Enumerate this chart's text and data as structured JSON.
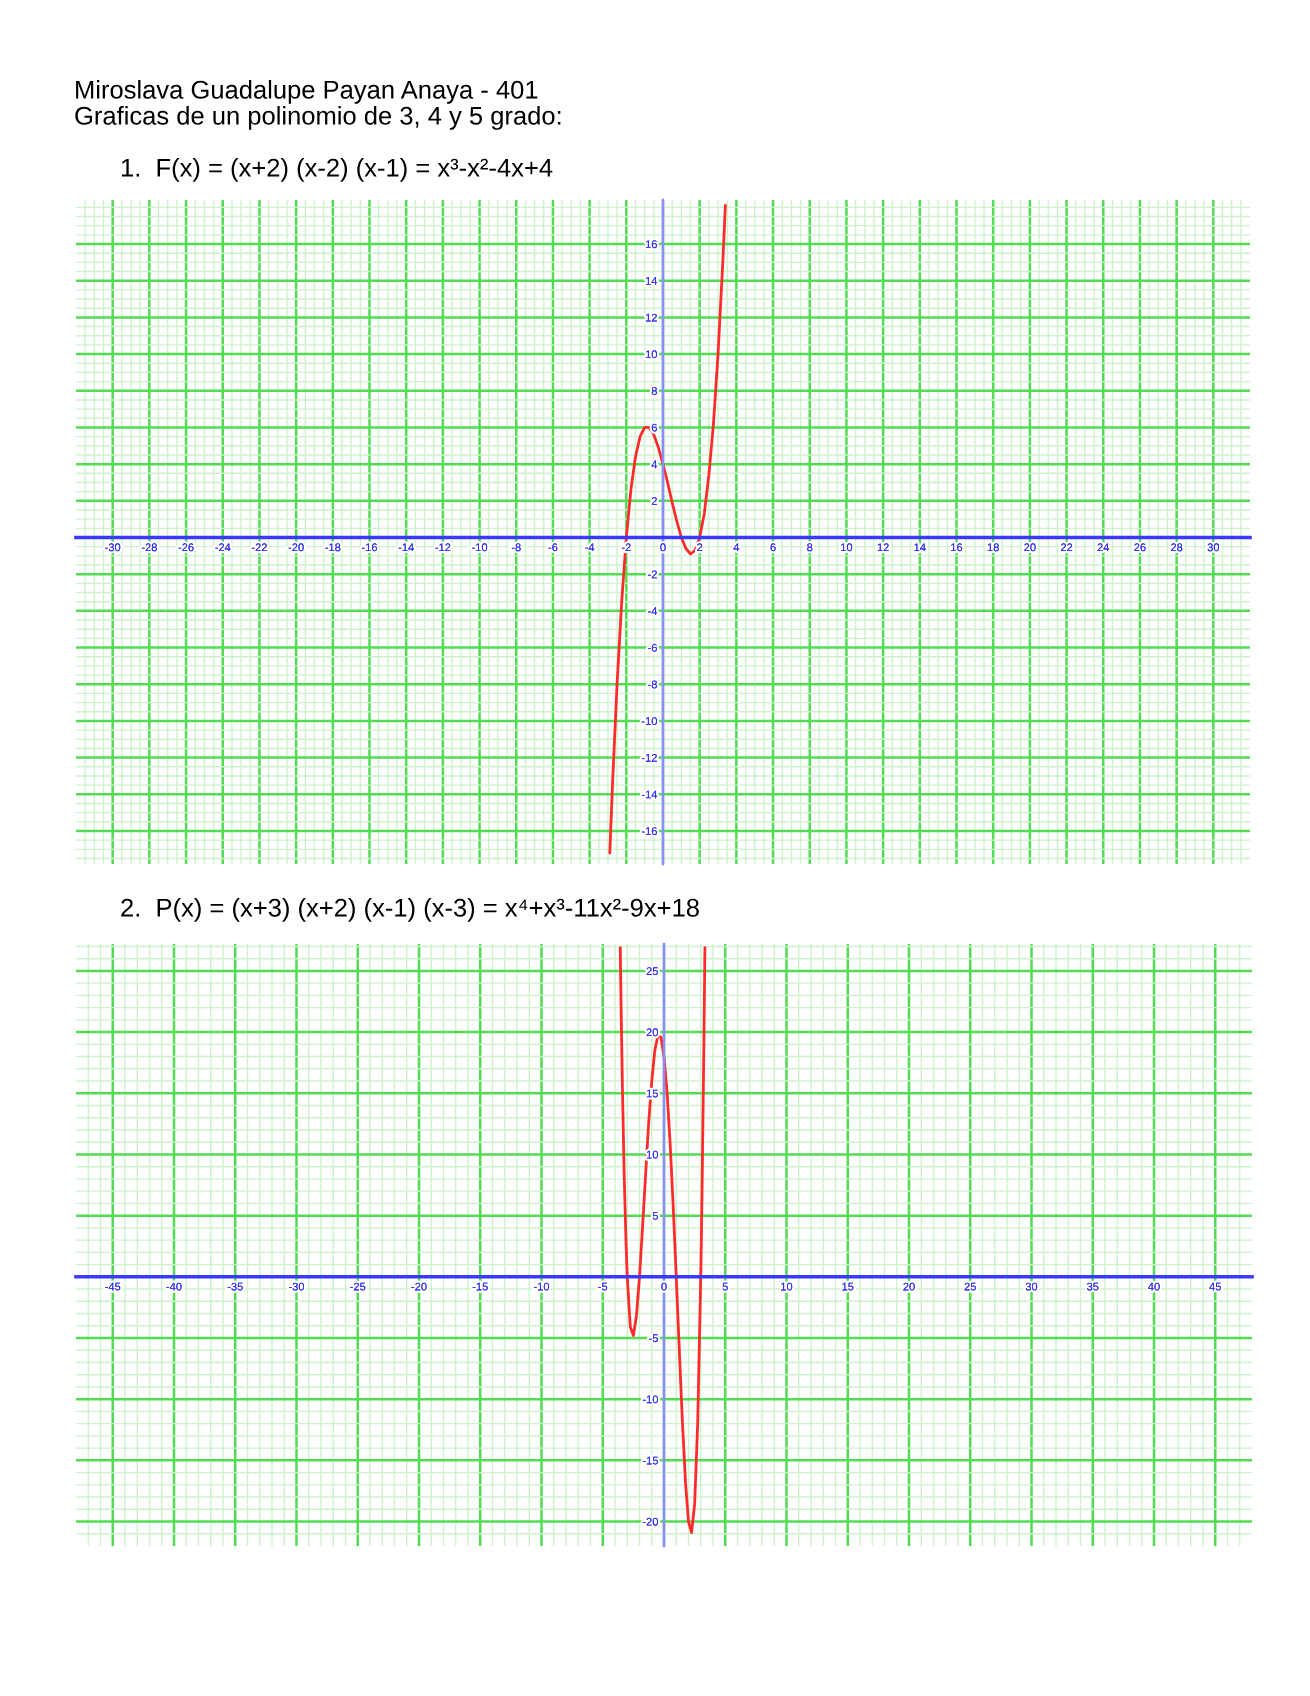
{
  "chart_data": [
    {
      "type": "line",
      "title": "Miroslava Guadalupe Payan Anaya - 401\nGraficas de un polinomio de 3, 4 y 5 grado:",
      "subtitle": "1.  F(x) = (x+2) (x-2) (x-1) = x³-x²-4x+4",
      "x": [
        -2.9,
        -2.75,
        -2.5,
        -2.25,
        -2,
        -1.75,
        -1.5,
        -1.25,
        -1,
        -0.75,
        -0.5,
        -0.25,
        0,
        0.25,
        0.5,
        0.75,
        1,
        1.25,
        1.5,
        1.75,
        2,
        2.25,
        2.5,
        2.75,
        3,
        3.25,
        3.4
      ],
      "series": [
        {
          "color": "#ff2a2a",
          "values": [
            -17.2,
            -13.4,
            -7.9,
            -3.5,
            0,
            2.6,
            4.4,
            5.5,
            6,
            6,
            5.6,
            4.9,
            4,
            3,
            1.9,
            0.9,
            0,
            -0.6,
            -0.9,
            -0.7,
            0,
            1.3,
            3.4,
            6.2,
            10,
            14.8,
            18.1
          ]
        }
      ],
      "xlim": [
        -32,
        32
      ],
      "ylim": [
        -17.8,
        18.4
      ],
      "xticks": [
        {
          "value": -31.5,
          "label": null
        },
        {
          "value": -31,
          "label": null
        },
        {
          "value": -30.5,
          "label": null
        },
        -30,
        {
          "value": -29.5,
          "label": null
        },
        {
          "value": -29,
          "label": null
        },
        {
          "value": -28.5,
          "label": null
        },
        -28,
        {
          "value": -27.5,
          "label": null
        },
        {
          "value": -27,
          "label": null
        },
        {
          "value": -26.5,
          "label": null
        },
        -26,
        {
          "value": -25.5,
          "label": null
        },
        {
          "value": -25,
          "label": null
        },
        {
          "value": -24.5,
          "label": null
        },
        -24,
        {
          "value": -23.5,
          "label": null
        },
        {
          "value": -23,
          "label": null
        },
        {
          "value": -22.5,
          "label": null
        },
        -22,
        {
          "value": -21.5,
          "label": null
        },
        {
          "value": -21,
          "label": null
        },
        {
          "value": -20.5,
          "label": null
        },
        -20,
        {
          "value": -19.5,
          "label": null
        },
        {
          "value": -19,
          "label": null
        },
        {
          "value": -18.5,
          "label": null
        },
        -18,
        {
          "value": -17.5,
          "label": null
        },
        {
          "value": -17,
          "label": null
        },
        {
          "value": -16.5,
          "label": null
        },
        -16,
        {
          "value": -15.5,
          "label": null
        },
        {
          "value": -15,
          "label": null
        },
        {
          "value": -14.5,
          "label": null
        },
        -14,
        {
          "value": -13.5,
          "label": null
        },
        {
          "value": -13,
          "label": null
        },
        {
          "value": -12.5,
          "label": null
        },
        -12,
        {
          "value": -11.5,
          "label": null
        },
        {
          "value": -11,
          "label": null
        },
        {
          "value": -10.5,
          "label": null
        },
        -10,
        {
          "value": -9.5,
          "label": null
        },
        {
          "value": -9,
          "label": null
        },
        {
          "value": -8.5,
          "label": null
        },
        -8,
        {
          "value": -7.5,
          "label": null
        },
        {
          "value": -7,
          "label": null
        },
        {
          "value": -6.5,
          "label": null
        },
        -6,
        {
          "value": -5.5,
          "label": null
        },
        {
          "value": -5,
          "label": null
        },
        {
          "value": -4.5,
          "label": null
        },
        -4,
        {
          "value": -3.5,
          "label": null
        },
        {
          "value": -3,
          "label": null
        },
        {
          "value": -2.5,
          "label": null
        },
        -2,
        {
          "value": -1.5,
          "label": null
        },
        {
          "value": -1,
          "label": null
        },
        {
          "value": -0.5,
          "label": null
        },
        0,
        {
          "value": 0.5,
          "label": null
        },
        {
          "value": 1,
          "label": null
        },
        {
          "value": 1.5,
          "label": null
        },
        2,
        {
          "value": 2.5,
          "label": null
        },
        {
          "value": 3,
          "label": null
        },
        {
          "value": 3.5,
          "label": null
        },
        4,
        {
          "value": 4.5,
          "label": null
        },
        {
          "value": 5,
          "label": null
        },
        {
          "value": 5.5,
          "label": null
        },
        6,
        {
          "value": 6.5,
          "label": null
        },
        {
          "value": 7,
          "label": null
        },
        {
          "value": 7.5,
          "label": null
        },
        8,
        {
          "value": 8.5,
          "label": null
        },
        {
          "value": 9,
          "label": null
        },
        {
          "value": 9.5,
          "label": null
        },
        10,
        {
          "value": 10.5,
          "label": null
        },
        {
          "value": 11,
          "label": null
        },
        {
          "value": 11.5,
          "label": null
        },
        12,
        {
          "value": 12.5,
          "label": null
        },
        {
          "value": 13,
          "label": null
        },
        {
          "value": 13.5,
          "label": null
        },
        14,
        {
          "value": 14.5,
          "label": null
        },
        {
          "value": 15,
          "label": null
        },
        {
          "value": 15.5,
          "label": null
        },
        16,
        {
          "value": 16.5,
          "label": null
        },
        {
          "value": 17,
          "label": null
        },
        {
          "value": 17.5,
          "label": null
        },
        18,
        {
          "value": 18.5,
          "label": null
        },
        {
          "value": 19,
          "label": null
        },
        {
          "value": 19.5,
          "label": null
        },
        20,
        {
          "value": 20.5,
          "label": null
        },
        {
          "value": 21,
          "label": null
        },
        {
          "value": 21.5,
          "label": null
        },
        22,
        {
          "value": 22.5,
          "label": null
        },
        {
          "value": 23,
          "label": null
        },
        {
          "value": 23.5,
          "label": null
        },
        24,
        {
          "value": 24.5,
          "label": null
        },
        {
          "value": 25,
          "label": null
        },
        {
          "value": 25.5,
          "label": null
        },
        26,
        {
          "value": 26.5,
          "label": null
        },
        {
          "value": 27,
          "label": null
        },
        {
          "value": 27.5,
          "label": null
        },
        28,
        {
          "value": 28.5,
          "label": null
        },
        {
          "value": 29,
          "label": null
        },
        {
          "value": 29.5,
          "label": null
        },
        30,
        {
          "value": 30.5,
          "label": null
        },
        {
          "value": 31,
          "label": null
        },
        {
          "value": 31.5,
          "label": null
        }
      ],
      "yticks": [
        {
          "value": -17.5,
          "label": null
        },
        {
          "value": -17,
          "label": null
        },
        {
          "value": -16.5,
          "label": null
        },
        -16,
        {
          "value": -15.5,
          "label": null
        },
        {
          "value": -15,
          "label": null
        },
        {
          "value": -14.5,
          "label": null
        },
        -14,
        {
          "value": -13.5,
          "label": null
        },
        {
          "value": -13,
          "label": null
        },
        {
          "value": -12.5,
          "label": null
        },
        -12,
        {
          "value": -11.5,
          "label": null
        },
        {
          "value": -11,
          "label": null
        },
        {
          "value": -10.5,
          "label": null
        },
        -10,
        {
          "value": -9.5,
          "label": null
        },
        {
          "value": -9,
          "label": null
        },
        {
          "value": -8.5,
          "label": null
        },
        -8,
        {
          "value": -7.5,
          "label": null
        },
        {
          "value": -7,
          "label": null
        },
        {
          "value": -6.5,
          "label": null
        },
        -6,
        {
          "value": -5.5,
          "label": null
        },
        {
          "value": -5,
          "label": null
        },
        {
          "value": -4.5,
          "label": null
        },
        -4,
        {
          "value": -3.5,
          "label": null
        },
        {
          "value": -3,
          "label": null
        },
        {
          "value": -2.5,
          "label": null
        },
        -2,
        {
          "value": -1.5,
          "label": null
        },
        {
          "value": -1,
          "label": null
        },
        {
          "value": -0.5,
          "label": null
        },
        {
          "value": 0.5,
          "label": null
        },
        {
          "value": 1,
          "label": null
        },
        {
          "value": 1.5,
          "label": null
        },
        2,
        {
          "value": 2.5,
          "label": null
        },
        {
          "value": 3,
          "label": null
        },
        {
          "value": 3.5,
          "label": null
        },
        4,
        {
          "value": 4.5,
          "label": null
        },
        {
          "value": 5,
          "label": null
        },
        {
          "value": 5.5,
          "label": null
        },
        6,
        {
          "value": 6.5,
          "label": null
        },
        {
          "value": 7,
          "label": null
        },
        {
          "value": 7.5,
          "label": null
        },
        8,
        {
          "value": 8.5,
          "label": null
        },
        {
          "value": 9,
          "label": null
        },
        {
          "value": 9.5,
          "label": null
        },
        10,
        {
          "value": 10.5,
          "label": null
        },
        {
          "value": 11,
          "label": null
        },
        {
          "value": 11.5,
          "label": null
        },
        12,
        {
          "value": 12.5,
          "label": null
        },
        {
          "value": 13,
          "label": null
        },
        {
          "value": 13.5,
          "label": null
        },
        14,
        {
          "value": 14.5,
          "label": null
        },
        {
          "value": 15,
          "label": null
        },
        {
          "value": 15.5,
          "label": null
        },
        16,
        {
          "value": 16.5,
          "label": null
        },
        {
          "value": 17,
          "label": null
        },
        {
          "value": 17.5,
          "label": null
        },
        {
          "value": 18,
          "label": null
        }
      ],
      "grid": true
    },
    {
      "type": "line",
      "title": "2.  P(x) = (x+3) (x+2) (x-1) (x-3) = x⁴+x³-11x²-9x+18",
      "x": [
        -3.57,
        -3.5,
        -3.4,
        -3.25,
        -3.1,
        -3,
        -2.75,
        -2.5,
        -2.25,
        -2,
        -1.75,
        -1.5,
        -1.25,
        -1,
        -0.75,
        -0.5,
        -0.25,
        0,
        0.25,
        0.5,
        0.75,
        1,
        1.25,
        1.5,
        1.75,
        2,
        2.25,
        2.5,
        2.75,
        3,
        3.1,
        3.25,
        3.34
      ],
      "series": [
        {
          "color": "#ff2a2a",
          "values": [
            26.9,
            21.9,
            15.8,
            8.3,
            2.8,
            0,
            -4.1,
            -4.8,
            -3.2,
            0,
            4.1,
            8.4,
            12.6,
            16,
            18.5,
            19.7,
            19.6,
            18,
            15.1,
            10.9,
            5.8,
            0,
            -6,
            -11.8,
            -16.7,
            -20,
            -20.9,
            -18.6,
            -12,
            0,
            6.5,
            18.5,
            26.9
          ]
        }
      ],
      "xlim": [
        -48,
        48
      ],
      "ylim": [
        -22,
        27.2
      ],
      "xticks": [
        {
          "value": -47,
          "label": null
        },
        {
          "value": -46,
          "label": null
        },
        -45,
        {
          "value": -44,
          "label": null
        },
        {
          "value": -43,
          "label": null
        },
        {
          "value": -42,
          "label": null
        },
        {
          "value": -41,
          "label": null
        },
        -40,
        {
          "value": -39,
          "label": null
        },
        {
          "value": -38,
          "label": null
        },
        {
          "value": -37,
          "label": null
        },
        {
          "value": -36,
          "label": null
        },
        -35,
        {
          "value": -34,
          "label": null
        },
        {
          "value": -33,
          "label": null
        },
        {
          "value": -32,
          "label": null
        },
        {
          "value": -31,
          "label": null
        },
        -30,
        {
          "value": -29,
          "label": null
        },
        {
          "value": -28,
          "label": null
        },
        {
          "value": -27,
          "label": null
        },
        {
          "value": -26,
          "label": null
        },
        -25,
        {
          "value": -24,
          "label": null
        },
        {
          "value": -23,
          "label": null
        },
        {
          "value": -22,
          "label": null
        },
        {
          "value": -21,
          "label": null
        },
        -20,
        {
          "value": -19,
          "label": null
        },
        {
          "value": -18,
          "label": null
        },
        {
          "value": -17,
          "label": null
        },
        {
          "value": -16,
          "label": null
        },
        -15,
        {
          "value": -14,
          "label": null
        },
        {
          "value": -13,
          "label": null
        },
        {
          "value": -12,
          "label": null
        },
        {
          "value": -11,
          "label": null
        },
        -10,
        {
          "value": -9,
          "label": null
        },
        {
          "value": -8,
          "label": null
        },
        {
          "value": -7,
          "label": null
        },
        {
          "value": -6,
          "label": null
        },
        -5,
        {
          "value": -4,
          "label": null
        },
        {
          "value": -3,
          "label": null
        },
        {
          "value": -2,
          "label": null
        },
        {
          "value": -1,
          "label": null
        },
        0,
        {
          "value": 1,
          "label": null
        },
        {
          "value": 2,
          "label": null
        },
        {
          "value": 3,
          "label": null
        },
        {
          "value": 4,
          "label": null
        },
        5,
        {
          "value": 6,
          "label": null
        },
        {
          "value": 7,
          "label": null
        },
        {
          "value": 8,
          "label": null
        },
        {
          "value": 9,
          "label": null
        },
        10,
        {
          "value": 11,
          "label": null
        },
        {
          "value": 12,
          "label": null
        },
        {
          "value": 13,
          "label": null
        },
        {
          "value": 14,
          "label": null
        },
        15,
        {
          "value": 16,
          "label": null
        },
        {
          "value": 17,
          "label": null
        },
        {
          "value": 18,
          "label": null
        },
        {
          "value": 19,
          "label": null
        },
        20,
        {
          "value": 21,
          "label": null
        },
        {
          "value": 22,
          "label": null
        },
        {
          "value": 23,
          "label": null
        },
        {
          "value": 24,
          "label": null
        },
        25,
        {
          "value": 26,
          "label": null
        },
        {
          "value": 27,
          "label": null
        },
        {
          "value": 28,
          "label": null
        },
        {
          "value": 29,
          "label": null
        },
        30,
        {
          "value": 31,
          "label": null
        },
        {
          "value": 32,
          "label": null
        },
        {
          "value": 33,
          "label": null
        },
        {
          "value": 34,
          "label": null
        },
        35,
        {
          "value": 36,
          "label": null
        },
        {
          "value": 37,
          "label": null
        },
        {
          "value": 38,
          "label": null
        },
        {
          "value": 39,
          "label": null
        },
        40,
        {
          "value": 41,
          "label": null
        },
        {
          "value": 42,
          "label": null
        },
        {
          "value": 43,
          "label": null
        },
        {
          "value": 44,
          "label": null
        },
        45,
        {
          "value": 46,
          "label": null
        },
        {
          "value": 47,
          "label": null
        }
      ],
      "yticks": [
        {
          "value": -21,
          "label": null
        },
        -20,
        {
          "value": -19,
          "label": null
        },
        {
          "value": -18,
          "label": null
        },
        {
          "value": -17,
          "label": null
        },
        {
          "value": -16,
          "label": null
        },
        -15,
        {
          "value": -14,
          "label": null
        },
        {
          "value": -13,
          "label": null
        },
        {
          "value": -12,
          "label": null
        },
        {
          "value": -11,
          "label": null
        },
        -10,
        {
          "value": -9,
          "label": null
        },
        {
          "value": -8,
          "label": null
        },
        {
          "value": -7,
          "label": null
        },
        {
          "value": -6,
          "label": null
        },
        -5,
        {
          "value": -4,
          "label": null
        },
        {
          "value": -3,
          "label": null
        },
        {
          "value": -2,
          "label": null
        },
        {
          "value": -1,
          "label": null
        },
        {
          "value": 1,
          "label": null
        },
        {
          "value": 2,
          "label": null
        },
        {
          "value": 3,
          "label": null
        },
        {
          "value": 4,
          "label": null
        },
        5,
        {
          "value": 6,
          "label": null
        },
        {
          "value": 7,
          "label": null
        },
        {
          "value": 8,
          "label": null
        },
        {
          "value": 9,
          "label": null
        },
        10,
        {
          "value": 11,
          "label": null
        },
        {
          "value": 12,
          "label": null
        },
        {
          "value": 13,
          "label": null
        },
        {
          "value": 14,
          "label": null
        },
        15,
        {
          "value": 16,
          "label": null
        },
        {
          "value": 17,
          "label": null
        },
        {
          "value": 18,
          "label": null
        },
        {
          "value": 19,
          "label": null
        },
        20,
        {
          "value": 21,
          "label": null
        },
        {
          "value": 22,
          "label": null
        },
        {
          "value": 23,
          "label": null
        },
        {
          "value": 24,
          "label": null
        },
        25,
        {
          "value": 26,
          "label": null
        },
        {
          "value": 27,
          "label": null
        }
      ],
      "grid": true
    }
  ]
}
